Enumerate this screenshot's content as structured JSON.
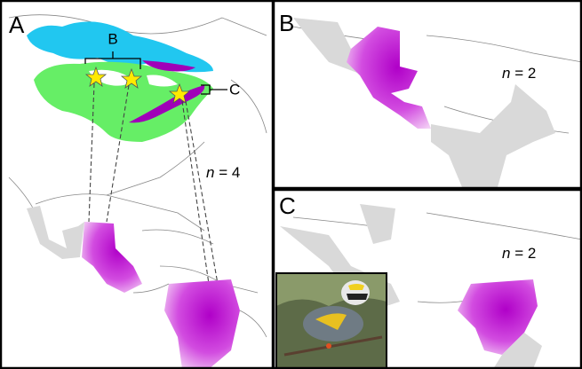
{
  "panels": [
    {
      "label": "A",
      "n_symbol": "n",
      "n_value": "= 4",
      "inset_labels": [
        "B",
        "C"
      ]
    },
    {
      "label": "B",
      "n_symbol": "n",
      "n_value": "= 2"
    },
    {
      "label": "C",
      "n_symbol": "n",
      "n_value": "= 2"
    }
  ]
}
